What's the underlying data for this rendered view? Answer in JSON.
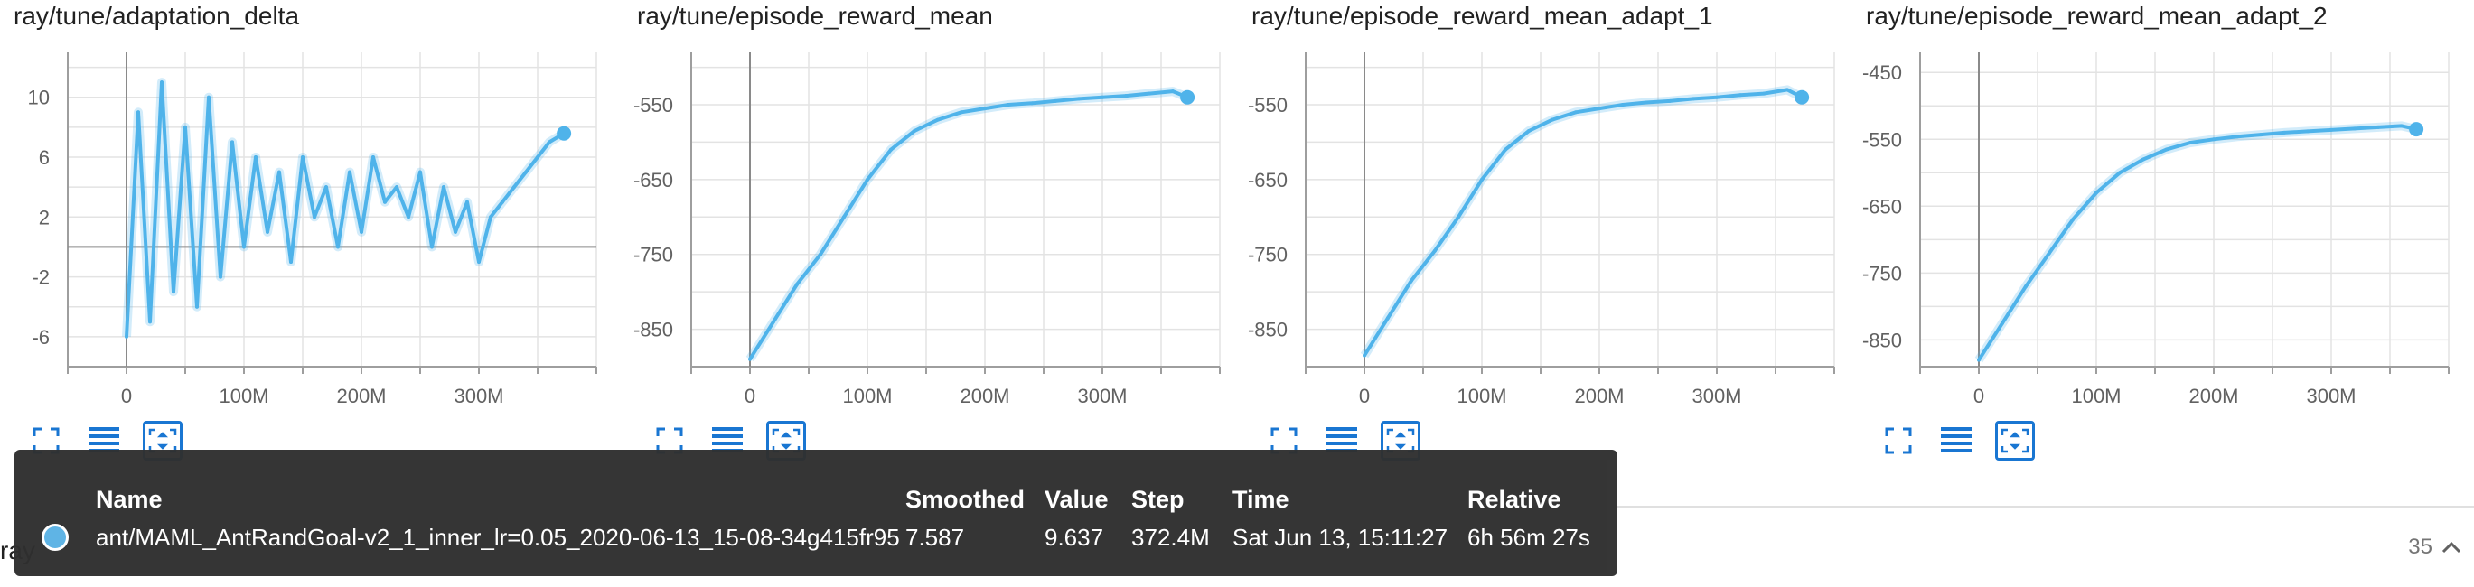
{
  "series_color": "#4fb3ea",
  "charts": [
    {
      "title": "ray/tune/adaptation_delta",
      "ytick_labels": [
        "10",
        "6",
        "2",
        "-2",
        "-6"
      ],
      "xtick_labels": [
        "0",
        "100M",
        "200M",
        "300M"
      ]
    },
    {
      "title": "ray/tune/episode_reward_mean",
      "ytick_labels": [
        "-550",
        "-650",
        "-750",
        "-850"
      ],
      "xtick_labels": [
        "0",
        "100M",
        "200M",
        "300M"
      ]
    },
    {
      "title": "ray/tune/episode_reward_mean_adapt_1",
      "ytick_labels": [
        "-550",
        "-650",
        "-750",
        "-850"
      ],
      "xtick_labels": [
        "0",
        "100M",
        "200M",
        "300M"
      ]
    },
    {
      "title": "ray/tune/episode_reward_mean_adapt_2",
      "ytick_labels": [
        "-450",
        "-550",
        "-650",
        "-750",
        "-850"
      ],
      "xtick_labels": [
        "0",
        "100M",
        "200M",
        "300M"
      ]
    }
  ],
  "chart_data": [
    {
      "type": "line",
      "title": "ray/tune/adaptation_delta",
      "xlim": [
        -50000000,
        400000000
      ],
      "ylim": [
        -8,
        13
      ],
      "yticks": [
        10,
        6,
        2,
        -2,
        -6
      ],
      "xticks": [
        0,
        100000000,
        200000000,
        300000000
      ],
      "zero_line": true,
      "grid": true,
      "x": [
        0,
        10000000,
        20000000,
        30000000,
        40000000,
        50000000,
        60000000,
        70000000,
        80000000,
        90000000,
        100000000,
        110000000,
        120000000,
        130000000,
        140000000,
        150000000,
        160000000,
        170000000,
        180000000,
        190000000,
        200000000,
        210000000,
        220000000,
        230000000,
        240000000,
        250000000,
        260000000,
        270000000,
        280000000,
        290000000,
        300000000,
        310000000,
        320000000,
        330000000,
        340000000,
        350000000,
        360000000,
        372400000
      ],
      "values": [
        -6,
        9,
        -5,
        11,
        -3,
        8,
        -4,
        10,
        -2,
        7,
        0,
        6,
        1,
        5,
        -1,
        6,
        2,
        4,
        0,
        5,
        1,
        6,
        3,
        4,
        2,
        5,
        0,
        4,
        1,
        3,
        -1,
        2,
        3,
        4,
        5,
        6,
        7,
        7.587
      ]
    },
    {
      "type": "line",
      "title": "ray/tune/episode_reward_mean",
      "xlim": [
        -50000000,
        400000000
      ],
      "ylim": [
        -900,
        -480
      ],
      "yticks": [
        -550,
        -650,
        -750,
        -850
      ],
      "xticks": [
        0,
        100000000,
        200000000,
        300000000
      ],
      "grid": true,
      "x": [
        0,
        20000000,
        40000000,
        60000000,
        80000000,
        100000000,
        120000000,
        140000000,
        160000000,
        180000000,
        200000000,
        220000000,
        240000000,
        260000000,
        280000000,
        300000000,
        320000000,
        340000000,
        360000000,
        372400000
      ],
      "values": [
        -890,
        -840,
        -790,
        -750,
        -700,
        -650,
        -610,
        -585,
        -570,
        -560,
        -555,
        -550,
        -548,
        -545,
        -542,
        -540,
        -538,
        -535,
        -532,
        -540
      ]
    },
    {
      "type": "line",
      "title": "ray/tune/episode_reward_mean_adapt_1",
      "xlim": [
        -50000000,
        400000000
      ],
      "ylim": [
        -900,
        -480
      ],
      "yticks": [
        -550,
        -650,
        -750,
        -850
      ],
      "xticks": [
        0,
        100000000,
        200000000,
        300000000
      ],
      "grid": true,
      "x": [
        0,
        20000000,
        40000000,
        60000000,
        80000000,
        100000000,
        120000000,
        140000000,
        160000000,
        180000000,
        200000000,
        220000000,
        240000000,
        260000000,
        280000000,
        300000000,
        320000000,
        340000000,
        360000000,
        372400000
      ],
      "values": [
        -885,
        -835,
        -785,
        -745,
        -700,
        -650,
        -610,
        -585,
        -570,
        -560,
        -555,
        -550,
        -547,
        -545,
        -542,
        -540,
        -537,
        -535,
        -530,
        -540
      ]
    },
    {
      "type": "line",
      "title": "ray/tune/episode_reward_mean_adapt_2",
      "xlim": [
        -50000000,
        400000000
      ],
      "ylim": [
        -890,
        -420
      ],
      "yticks": [
        -450,
        -550,
        -650,
        -750,
        -850
      ],
      "xticks": [
        0,
        100000000,
        200000000,
        300000000
      ],
      "grid": true,
      "x": [
        0,
        20000000,
        40000000,
        60000000,
        80000000,
        100000000,
        120000000,
        140000000,
        160000000,
        180000000,
        200000000,
        220000000,
        240000000,
        260000000,
        280000000,
        300000000,
        320000000,
        340000000,
        360000000,
        372400000
      ],
      "values": [
        -880,
        -825,
        -770,
        -720,
        -670,
        -630,
        -600,
        -580,
        -565,
        -555,
        -550,
        -546,
        -543,
        -540,
        -538,
        -536,
        -534,
        -532,
        -530,
        -535
      ]
    }
  ],
  "tooltip": {
    "headers": {
      "name": "Name",
      "smoothed": "Smoothed",
      "value": "Value",
      "step": "Step",
      "time": "Time",
      "relative": "Relative"
    },
    "row": {
      "name": "ant/MAML_AntRandGoal-v2_1_inner_lr=0.05_2020-06-13_15-08-34g415fr95",
      "smoothed": "7.587",
      "value": "9.637",
      "step": "372.4M",
      "time": "Sat Jun 13, 15:11:27",
      "relative": "6h 56m 27s"
    }
  },
  "footer": {
    "left_label": "ray",
    "count": "35"
  },
  "icons": {
    "fullscreen": "fullscreen-icon",
    "lines": "toggle-lines-icon",
    "fit": "fit-domain-icon",
    "collapse": "chevron-up-icon"
  }
}
